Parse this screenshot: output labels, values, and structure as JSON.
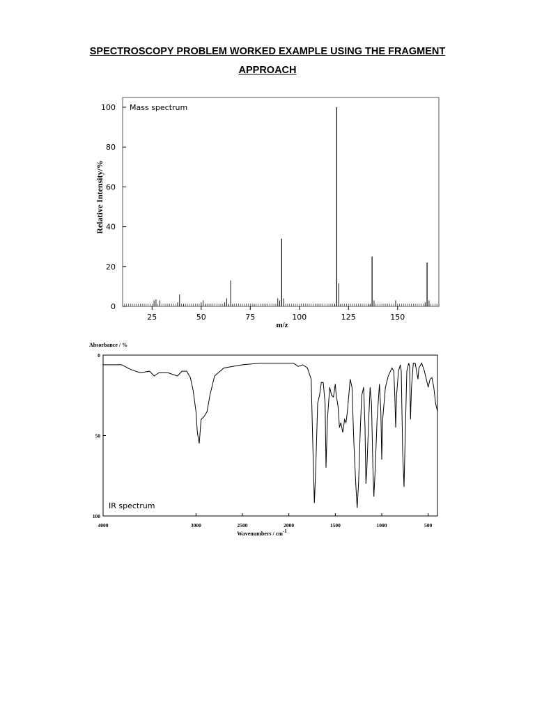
{
  "document": {
    "title_line1": "SPECTROSCOPY PROBLEM WORKED EXAMPLE USING THE FRAGMENT",
    "title_line2": "APPROACH"
  },
  "chart_data": [
    {
      "type": "bar",
      "title": "Mass spectrum",
      "xlabel": "m/z",
      "ylabel": "Relative Intensity/%",
      "xlim": [
        10,
        171
      ],
      "ylim": [
        0,
        100
      ],
      "x_ticks": [
        25,
        50,
        75,
        100,
        125,
        150
      ],
      "y_ticks": [
        0,
        20,
        40,
        60,
        80,
        100
      ],
      "grid": false,
      "peaks": [
        [
          26,
          3
        ],
        [
          27,
          3.5
        ],
        [
          29,
          3
        ],
        [
          38,
          2
        ],
        [
          39,
          6
        ],
        [
          41,
          1
        ],
        [
          50,
          2
        ],
        [
          51,
          3
        ],
        [
          52,
          1
        ],
        [
          62,
          2
        ],
        [
          63,
          4
        ],
        [
          64,
          1
        ],
        [
          65,
          13
        ],
        [
          66,
          1
        ],
        [
          77,
          1
        ],
        [
          89,
          4
        ],
        [
          90,
          3
        ],
        [
          91,
          34
        ],
        [
          92,
          4
        ],
        [
          118,
          1
        ],
        [
          119,
          100
        ],
        [
          120,
          11.5
        ],
        [
          121,
          1
        ],
        [
          135,
          1
        ],
        [
          136,
          1
        ],
        [
          137,
          25
        ],
        [
          138,
          3
        ],
        [
          149,
          3
        ],
        [
          164,
          2
        ],
        [
          165,
          22
        ],
        [
          166,
          3
        ]
      ]
    },
    {
      "type": "line",
      "title": "IR spectrum",
      "xlabel": "Wavenumbers / cm-1",
      "ylabel": "Absorbance / %",
      "xlim": [
        4000,
        400
      ],
      "ylim": [
        100,
        0
      ],
      "x_ticks": [
        4000,
        3000,
        2500,
        2000,
        1500,
        1000,
        500
      ],
      "y_ticks": [
        0,
        50,
        100
      ],
      "grid": false,
      "points": [
        [
          4000,
          6
        ],
        [
          3800,
          6
        ],
        [
          3700,
          9
        ],
        [
          3600,
          11
        ],
        [
          3500,
          10
        ],
        [
          3450,
          13
        ],
        [
          3400,
          11
        ],
        [
          3300,
          11
        ],
        [
          3200,
          13
        ],
        [
          3150,
          10
        ],
        [
          3100,
          10
        ],
        [
          3060,
          14
        ],
        [
          3030,
          22
        ],
        [
          3000,
          35
        ],
        [
          2985,
          48
        ],
        [
          2965,
          55
        ],
        [
          2945,
          40
        ],
        [
          2910,
          38
        ],
        [
          2880,
          35
        ],
        [
          2850,
          25
        ],
        [
          2800,
          13
        ],
        [
          2700,
          8
        ],
        [
          2500,
          6
        ],
        [
          2300,
          5
        ],
        [
          2000,
          5
        ],
        [
          1950,
          5
        ],
        [
          1900,
          7
        ],
        [
          1850,
          6
        ],
        [
          1800,
          8
        ],
        [
          1760,
          15
        ],
        [
          1740,
          60
        ],
        [
          1725,
          92
        ],
        [
          1710,
          70
        ],
        [
          1690,
          30
        ],
        [
          1670,
          25
        ],
        [
          1650,
          17
        ],
        [
          1630,
          17
        ],
        [
          1610,
          30
        ],
        [
          1600,
          70
        ],
        [
          1585,
          40
        ],
        [
          1560,
          20
        ],
        [
          1540,
          25
        ],
        [
          1520,
          26
        ],
        [
          1500,
          18
        ],
        [
          1490,
          25
        ],
        [
          1470,
          32
        ],
        [
          1455,
          45
        ],
        [
          1440,
          42
        ],
        [
          1420,
          48
        ],
        [
          1400,
          40
        ],
        [
          1385,
          42
        ],
        [
          1370,
          35
        ],
        [
          1340,
          15
        ],
        [
          1320,
          20
        ],
        [
          1300,
          55
        ],
        [
          1280,
          80
        ],
        [
          1265,
          95
        ],
        [
          1250,
          80
        ],
        [
          1230,
          45
        ],
        [
          1215,
          25
        ],
        [
          1195,
          20
        ],
        [
          1180,
          45
        ],
        [
          1170,
          80
        ],
        [
          1160,
          70
        ],
        [
          1140,
          40
        ],
        [
          1125,
          20
        ],
        [
          1110,
          30
        ],
        [
          1095,
          70
        ],
        [
          1085,
          88
        ],
        [
          1070,
          70
        ],
        [
          1050,
          40
        ],
        [
          1025,
          18
        ],
        [
          1010,
          35
        ],
        [
          1000,
          65
        ],
        [
          990,
          40
        ],
        [
          960,
          20
        ],
        [
          930,
          13
        ],
        [
          890,
          8
        ],
        [
          870,
          10
        ],
        [
          860,
          25
        ],
        [
          850,
          45
        ],
        [
          840,
          25
        ],
        [
          820,
          10
        ],
        [
          800,
          6
        ],
        [
          790,
          10
        ],
        [
          775,
          60
        ],
        [
          760,
          82
        ],
        [
          745,
          45
        ],
        [
          730,
          10
        ],
        [
          710,
          5
        ],
        [
          700,
          7
        ],
        [
          690,
          40
        ],
        [
          680,
          20
        ],
        [
          660,
          5
        ],
        [
          640,
          5
        ],
        [
          610,
          15
        ],
        [
          600,
          8
        ],
        [
          570,
          5
        ],
        [
          540,
          10
        ],
        [
          500,
          20
        ],
        [
          480,
          15
        ],
        [
          460,
          14
        ],
        [
          440,
          20
        ],
        [
          420,
          30
        ],
        [
          400,
          35
        ]
      ],
      "annotation": "IR spectrum"
    }
  ]
}
